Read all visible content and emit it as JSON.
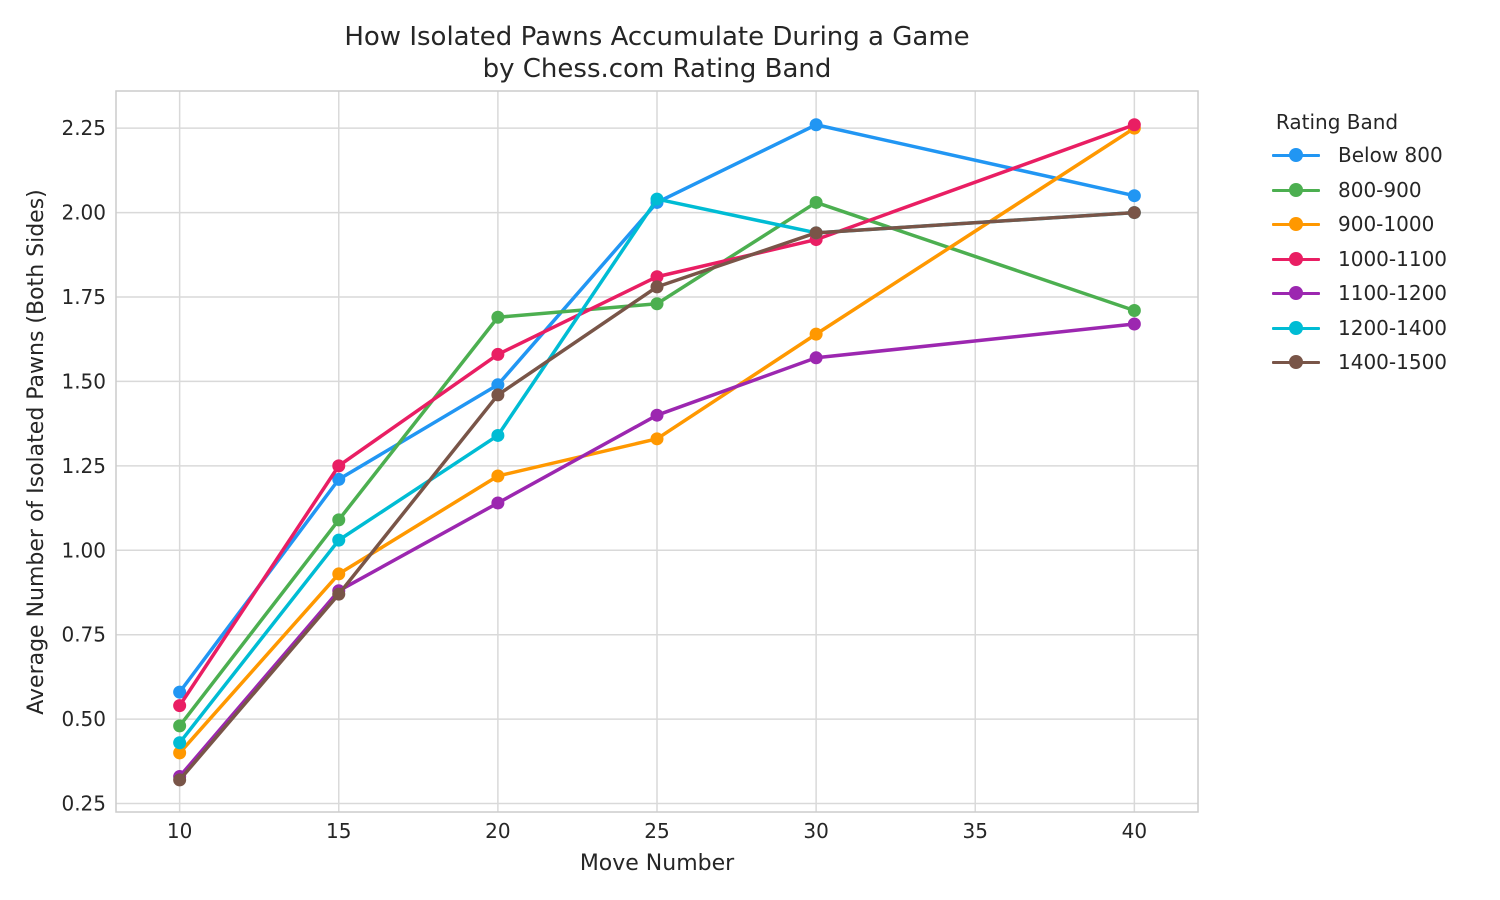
{
  "chart_data": {
    "type": "line",
    "title": "How Isolated Pawns Accumulate During a Game",
    "subtitle": "by Chess.com Rating Band",
    "xlabel": "Move Number",
    "ylabel": "Average Number of Isolated Pawns (Both Sides)",
    "xlim": [
      8,
      42
    ],
    "ylim": [
      0.225,
      2.36
    ],
    "xticks": [
      10,
      15,
      20,
      25,
      30,
      35,
      40
    ],
    "yticks": [
      0.25,
      0.5,
      0.75,
      1.0,
      1.25,
      1.5,
      1.75,
      2.0,
      2.25
    ],
    "ytick_labels": [
      "0.25",
      "0.50",
      "0.75",
      "1.00",
      "1.25",
      "1.50",
      "1.75",
      "2.00",
      "2.25"
    ],
    "grid": true,
    "legend_title": "Rating Band",
    "legend_placement": "outside-right",
    "x": [
      10,
      15,
      20,
      25,
      30,
      40
    ],
    "series": [
      {
        "name": "Below 800",
        "color": "#2196F3",
        "values": [
          0.58,
          1.21,
          1.49,
          2.03,
          2.26,
          2.05
        ]
      },
      {
        "name": "800-900",
        "color": "#4CAF50",
        "values": [
          0.48,
          1.09,
          1.69,
          1.73,
          2.03,
          1.71
        ]
      },
      {
        "name": "900-1000",
        "color": "#FF9800",
        "values": [
          0.4,
          0.93,
          1.22,
          1.33,
          1.64,
          2.25
        ]
      },
      {
        "name": "1000-1100",
        "color": "#E91E63",
        "values": [
          0.54,
          1.25,
          1.58,
          1.81,
          1.92,
          2.26
        ]
      },
      {
        "name": "1100-1200",
        "color": "#9C27B0",
        "values": [
          0.33,
          0.88,
          1.14,
          1.4,
          1.57,
          1.67
        ]
      },
      {
        "name": "1200-1400",
        "color": "#00BCD4",
        "values": [
          0.43,
          1.03,
          1.34,
          2.04,
          1.94,
          2.0
        ]
      },
      {
        "name": "1400-1500",
        "color": "#795548",
        "values": [
          0.32,
          0.87,
          1.46,
          1.78,
          1.94,
          2.0
        ]
      }
    ]
  }
}
